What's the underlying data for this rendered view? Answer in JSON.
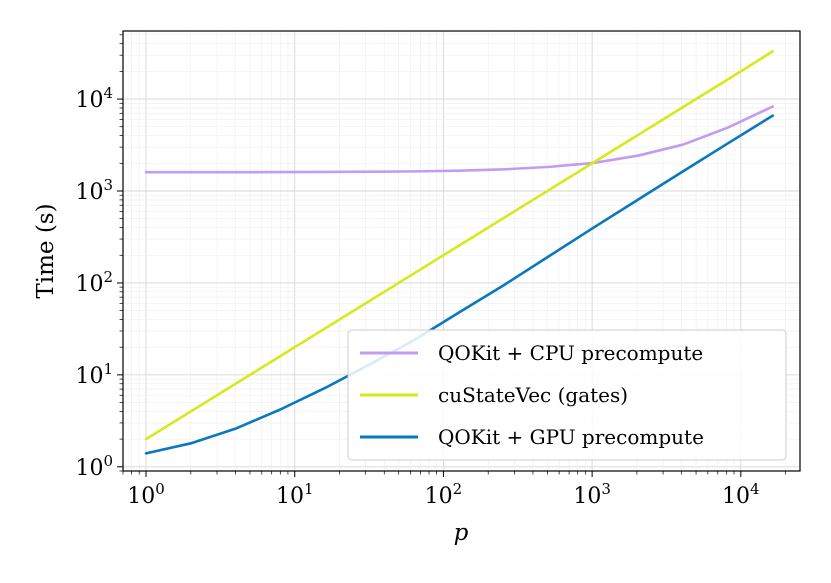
{
  "chart_data": {
    "type": "line",
    "title": "",
    "xlabel": "p",
    "ylabel": "Time (s)",
    "xscale": "log",
    "yscale": "log",
    "xlim": [
      0.7,
      25000
    ],
    "ylim": [
      0.9,
      55000
    ],
    "grid": true,
    "legend_position": "lower-right",
    "x_ticks": [
      {
        "base": "10",
        "exp": "0",
        "value": 1
      },
      {
        "base": "10",
        "exp": "1",
        "value": 10
      },
      {
        "base": "10",
        "exp": "2",
        "value": 100
      },
      {
        "base": "10",
        "exp": "3",
        "value": 1000
      },
      {
        "base": "10",
        "exp": "4",
        "value": 10000
      }
    ],
    "y_ticks": [
      {
        "base": "10",
        "exp": "0",
        "value": 1
      },
      {
        "base": "10",
        "exp": "1",
        "value": 10
      },
      {
        "base": "10",
        "exp": "2",
        "value": 100
      },
      {
        "base": "10",
        "exp": "3",
        "value": 1000
      },
      {
        "base": "10",
        "exp": "4",
        "value": 10000
      }
    ],
    "series": [
      {
        "name": "QOKit + CPU precompute",
        "color": "#c39bf0",
        "x": [
          1,
          2,
          4,
          8,
          16,
          32,
          64,
          128,
          256,
          512,
          1024,
          2048,
          4096,
          8192,
          16384
        ],
        "y": [
          1600,
          1600,
          1600,
          1605,
          1610,
          1620,
          1635,
          1665,
          1720,
          1830,
          2020,
          2430,
          3200,
          4900,
          8300
        ]
      },
      {
        "name": "cuStateVec (gates)",
        "color": "#d4ea1a",
        "x": [
          1,
          2,
          4,
          8,
          16,
          32,
          64,
          128,
          256,
          512,
          1024,
          2048,
          4096,
          8192,
          16384
        ],
        "y": [
          2,
          4,
          8,
          16,
          32,
          64,
          128,
          256,
          512,
          1024,
          2048,
          4096,
          8192,
          16384,
          33000
        ]
      },
      {
        "name": "QOKit + GPU precompute",
        "color": "#0a78bd",
        "x": [
          1,
          2,
          4,
          8,
          16,
          32,
          64,
          128,
          256,
          512,
          1024,
          2048,
          4096,
          8192,
          16384
        ],
        "y": [
          1.4,
          1.8,
          2.6,
          4.2,
          7.2,
          13,
          24,
          48,
          95,
          195,
          400,
          810,
          1640,
          3300,
          6600
        ]
      }
    ]
  }
}
